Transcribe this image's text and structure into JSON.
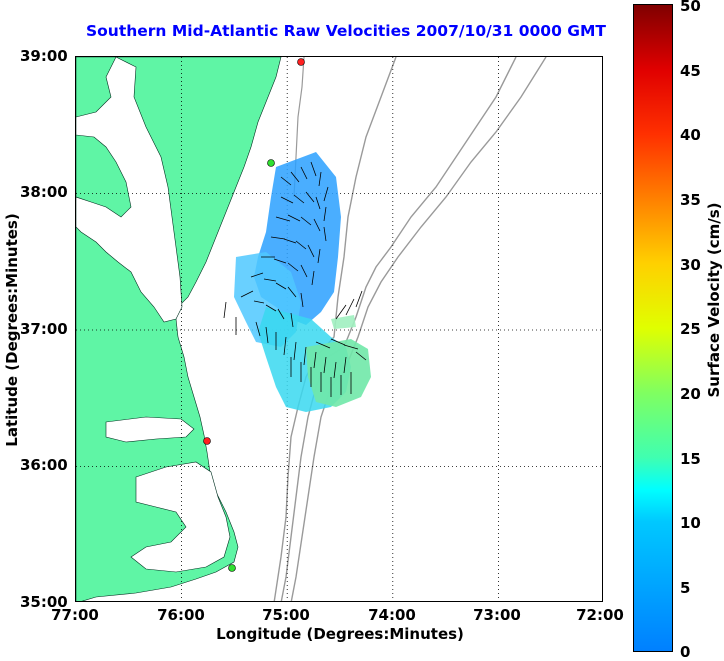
{
  "title": "Southern Mid-Atlantic Raw Velocities 2007/10/31 0000 GMT",
  "x_axis": {
    "label": "Longitude (Degrees:Minutes)",
    "ticks": [
      "77:00",
      "76:00",
      "75:00",
      "74:00",
      "73:00",
      "72:00"
    ]
  },
  "y_axis": {
    "label": "Latitude (Degrees:Minutes)",
    "ticks": [
      "39:00",
      "38:00",
      "37:00",
      "36:00",
      "35:00"
    ]
  },
  "colorbar": {
    "label": "Surface Velocity (cm/s)",
    "ticks": [
      "50",
      "45",
      "40",
      "35",
      "30",
      "25",
      "20",
      "15",
      "10",
      "5",
      "0"
    ],
    "range": [
      0,
      50
    ]
  },
  "colors": {
    "land": "#5ff5a5",
    "title": "#0000ff",
    "bathymetry": "#9a9a9a",
    "vectors": "#000000",
    "station_active": "#ff2020",
    "station_inactive": "#30e030"
  },
  "map_extent": {
    "lon": [
      -77,
      -72
    ],
    "lat": [
      35,
      39
    ]
  },
  "stations": [
    {
      "lon": -74.87,
      "lat": 38.97,
      "status": "red"
    },
    {
      "lon": -75.15,
      "lat": 38.22,
      "status": "green"
    },
    {
      "lon": -75.66,
      "lat": 36.18,
      "status": "red"
    },
    {
      "lon": -75.47,
      "lat": 35.25,
      "status": "green"
    }
  ]
}
